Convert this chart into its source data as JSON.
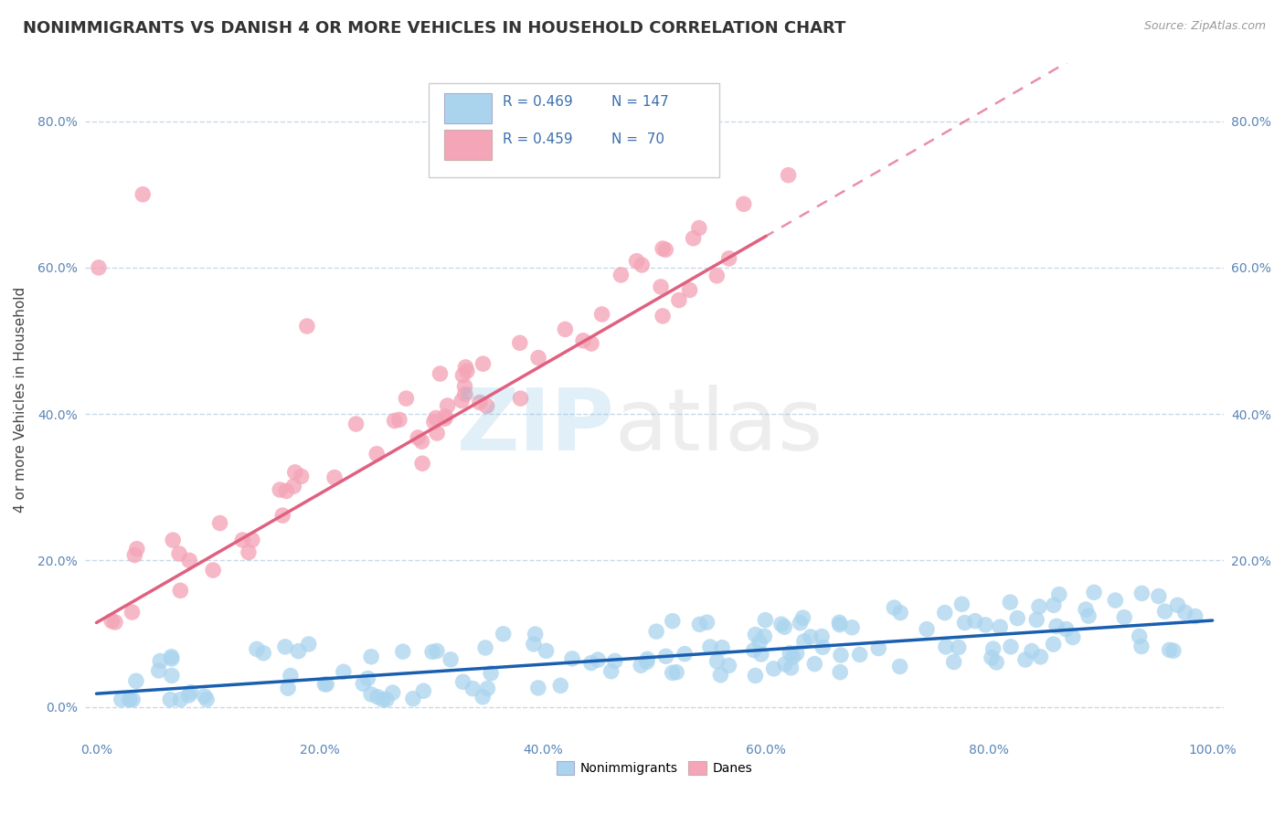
{
  "title": "NONIMMIGRANTS VS DANISH 4 OR MORE VEHICLES IN HOUSEHOLD CORRELATION CHART",
  "source_text": "Source: ZipAtlas.com",
  "ylabel": "4 or more Vehicles in Household",
  "xlim": [
    -0.01,
    1.01
  ],
  "ylim": [
    -0.04,
    0.88
  ],
  "xticks": [
    0.0,
    0.2,
    0.4,
    0.6,
    0.8,
    1.0
  ],
  "xticklabels": [
    "0.0%",
    "20.0%",
    "40.0%",
    "60.0%",
    "80.0%",
    "100.0%"
  ],
  "yticks": [
    0.0,
    0.2,
    0.4,
    0.6,
    0.8
  ],
  "yticklabels": [
    "0.0%",
    "20.0%",
    "40.0%",
    "60.0%",
    "80.0%"
  ],
  "right_yticks": [
    0.2,
    0.4,
    0.6,
    0.8
  ],
  "right_yticklabels": [
    "20.0%",
    "40.0%",
    "60.0%",
    "80.0%"
  ],
  "scatter_color_nonimm": "#aad4ee",
  "scatter_color_danes": "#f4a6b8",
  "line_color_nonimm": "#1a5faf",
  "line_color_danes": "#e06080",
  "background_color": "#ffffff",
  "grid_color": "#c8daea",
  "title_fontsize": 13,
  "axis_label_fontsize": 11,
  "tick_fontsize": 10,
  "watermark_zip_color": "#7ab8e0",
  "watermark_atlas_color": "#b0b0b0",
  "nonimm_slope": 0.1,
  "nonimm_intercept": 0.018,
  "danes_slope": 0.88,
  "danes_intercept": 0.115
}
